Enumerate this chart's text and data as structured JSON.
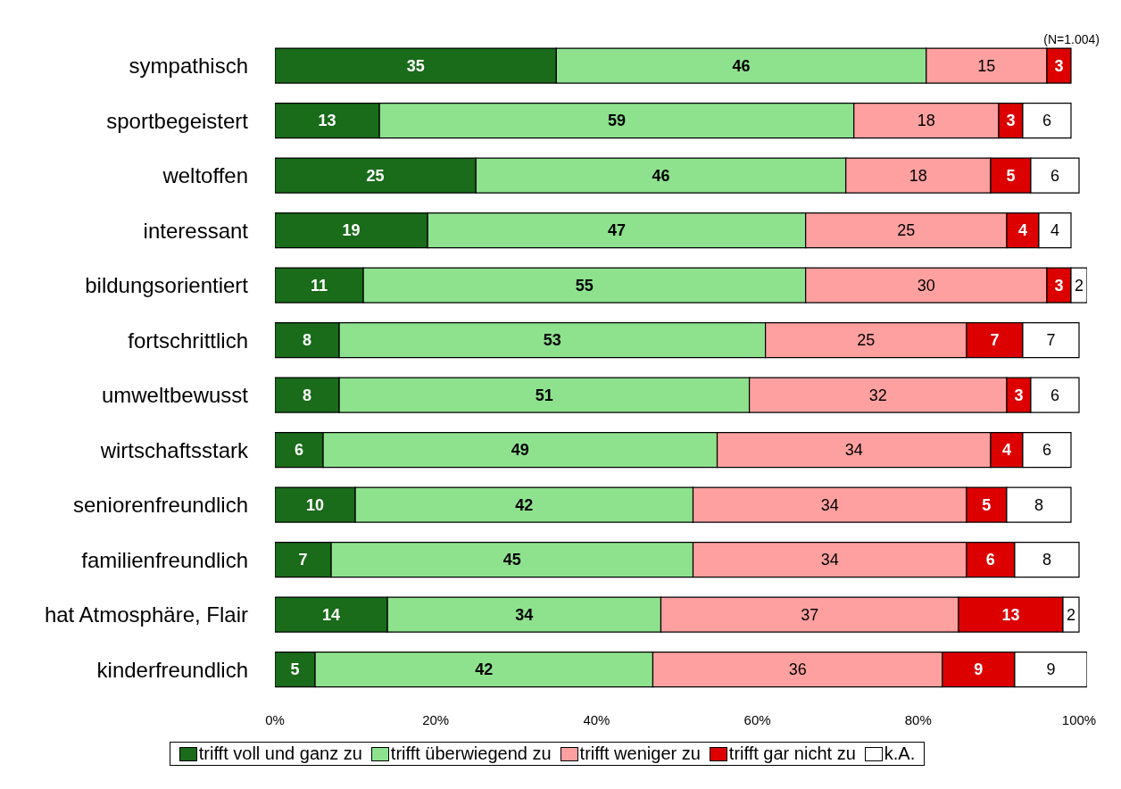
{
  "chart_data": {
    "type": "bar",
    "orientation": "horizontal",
    "stacked": true,
    "data_labels": true,
    "legend": "bottom",
    "annotations": [
      "(N=1.004)"
    ],
    "categories": [
      "sympathisch",
      "sportbegeistert",
      "weltoffen",
      "interessant",
      "bildungsorientiert",
      "fortschrittlich",
      "umweltbewusst",
      "wirtschaftsstark",
      "seniorenfreundlich",
      "familienfreundlich",
      "hat Atmosphäre, Flair",
      "kinderfreundlich"
    ],
    "xlim": [
      0,
      101
    ],
    "xticks": [
      {
        "value": 0,
        "label": "0%"
      },
      {
        "value": 20,
        "label": "20%"
      },
      {
        "value": 40,
        "label": "40%"
      },
      {
        "value": 60,
        "label": "60%"
      },
      {
        "value": 80,
        "label": "80%"
      },
      {
        "value": 100,
        "label": "100%"
      }
    ],
    "series": [
      {
        "name": "trifft voll und ganz zu",
        "color": "#1a6b1a",
        "values": [
          35,
          13,
          25,
          19,
          11,
          8,
          8,
          6,
          10,
          7,
          14,
          5
        ]
      },
      {
        "name": "trifft überwiegend zu",
        "color": "#8ee28e",
        "values": [
          46,
          59,
          46,
          47,
          55,
          53,
          51,
          49,
          42,
          45,
          34,
          42
        ]
      },
      {
        "name": "trifft weniger zu",
        "color": "#ffa0a0",
        "values": [
          15,
          18,
          18,
          25,
          30,
          25,
          32,
          34,
          34,
          34,
          37,
          36
        ]
      },
      {
        "name": "trifft gar nicht zu",
        "color": "#dd0000",
        "values": [
          3,
          3,
          5,
          4,
          3,
          7,
          3,
          4,
          5,
          6,
          13,
          9
        ]
      },
      {
        "name": "k.A.",
        "color": "#ffffff",
        "values": [
          null,
          6,
          6,
          4,
          2,
          7,
          6,
          6,
          8,
          8,
          2,
          9
        ]
      }
    ]
  }
}
